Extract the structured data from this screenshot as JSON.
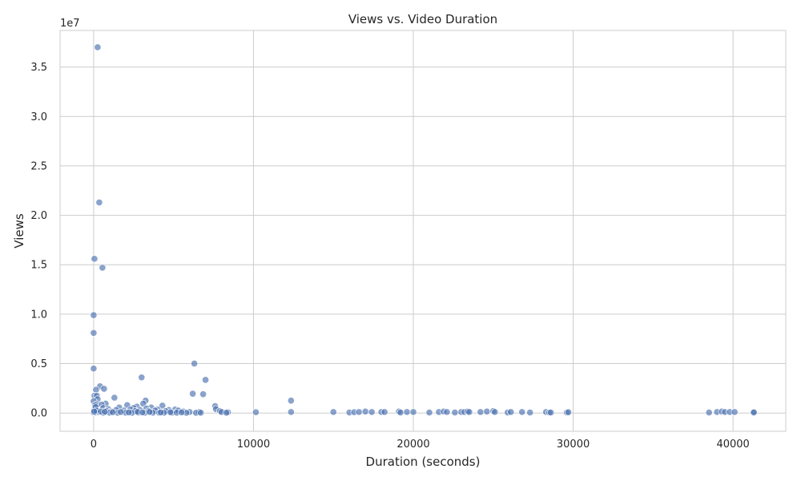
{
  "chart_data": {
    "type": "scatter",
    "title": "Views vs. Video Duration",
    "xlabel": "Duration (seconds)",
    "ylabel": "Views",
    "y_offset_label": "1e7",
    "xlim": [
      -2100,
      43300
    ],
    "ylim": [
      -1850000,
      38700000
    ],
    "x_ticks": [
      0,
      10000,
      20000,
      30000,
      40000
    ],
    "x_tick_labels": [
      "0",
      "10000",
      "20000",
      "30000",
      "40000"
    ],
    "y_ticks": [
      0,
      5000000,
      10000000,
      15000000,
      20000000,
      25000000,
      30000000,
      35000000
    ],
    "y_tick_labels": [
      "0.0",
      "0.5",
      "1.0",
      "1.5",
      "2.0",
      "2.5",
      "3.0",
      "3.5"
    ],
    "grid": true,
    "point_color": "#4c72b0",
    "background": "#ffffff",
    "grid_color": "#cccccc",
    "series": [
      {
        "points": [
          [
            250,
            37000000
          ],
          [
            350,
            21300000
          ],
          [
            50,
            15600000
          ],
          [
            550,
            14700000
          ],
          [
            0,
            9900000
          ],
          [
            0,
            8100000
          ],
          [
            0,
            4500000
          ],
          [
            6300,
            5000000
          ],
          [
            3000,
            3600000
          ],
          [
            7000,
            3350000
          ],
          [
            400,
            2700000
          ],
          [
            650,
            2450000
          ],
          [
            150,
            2350000
          ],
          [
            6200,
            1950000
          ],
          [
            6850,
            1900000
          ],
          [
            50,
            1750000
          ],
          [
            200,
            1750000
          ],
          [
            1300,
            1550000
          ],
          [
            250,
            1400000
          ],
          [
            3250,
            1250000
          ],
          [
            12350,
            1250000
          ],
          [
            0,
            1200000
          ],
          [
            750,
            950000
          ],
          [
            3100,
            950000
          ],
          [
            200,
            900000
          ],
          [
            500,
            850000
          ],
          [
            100,
            800000
          ],
          [
            2100,
            800000
          ],
          [
            4300,
            750000
          ],
          [
            7600,
            700000
          ],
          [
            2700,
            650000
          ],
          [
            1600,
            550000
          ],
          [
            3600,
            550000
          ],
          [
            600,
            500000
          ],
          [
            2500,
            500000
          ],
          [
            3300,
            450000
          ],
          [
            900,
            400000
          ],
          [
            7650,
            400000
          ],
          [
            2300,
            350000
          ],
          [
            4000,
            350000
          ],
          [
            5100,
            350000
          ],
          [
            1400,
            300000
          ],
          [
            2900,
            300000
          ],
          [
            4700,
            300000
          ],
          [
            1900,
            250000
          ],
          [
            3850,
            250000
          ],
          [
            5300,
            250000
          ],
          [
            7900,
            200000
          ],
          [
            800,
            200000
          ],
          [
            1100,
            150000
          ],
          [
            2600,
            200000
          ],
          [
            3450,
            200000
          ],
          [
            4500,
            200000
          ],
          [
            5600,
            150000
          ],
          [
            6000,
            100000
          ],
          [
            6600,
            100000
          ],
          [
            8000,
            100000
          ],
          [
            8400,
            80000
          ],
          [
            10150,
            80000
          ],
          [
            12350,
            100000
          ],
          [
            15000,
            100000
          ],
          [
            16000,
            50000
          ],
          [
            16300,
            80000
          ],
          [
            16600,
            100000
          ],
          [
            17000,
            150000
          ],
          [
            17400,
            100000
          ],
          [
            18000,
            100000
          ],
          [
            18200,
            100000
          ],
          [
            19100,
            150000
          ],
          [
            19200,
            50000
          ],
          [
            19600,
            100000
          ],
          [
            20000,
            100000
          ],
          [
            21000,
            50000
          ],
          [
            21600,
            100000
          ],
          [
            21900,
            150000
          ],
          [
            22100,
            100000
          ],
          [
            22600,
            50000
          ],
          [
            23000,
            100000
          ],
          [
            23200,
            100000
          ],
          [
            23400,
            150000
          ],
          [
            23500,
            100000
          ],
          [
            24200,
            100000
          ],
          [
            24600,
            150000
          ],
          [
            25000,
            200000
          ],
          [
            25100,
            100000
          ],
          [
            25900,
            50000
          ],
          [
            26100,
            100000
          ],
          [
            26800,
            100000
          ],
          [
            27300,
            50000
          ],
          [
            28300,
            100000
          ],
          [
            28500,
            50000
          ],
          [
            28600,
            50000
          ],
          [
            29600,
            50000
          ],
          [
            29700,
            80000
          ],
          [
            38500,
            50000
          ],
          [
            39000,
            100000
          ],
          [
            39300,
            150000
          ],
          [
            39500,
            100000
          ],
          [
            39800,
            100000
          ],
          [
            40100,
            100000
          ],
          [
            41300,
            120000
          ],
          [
            41300,
            50000
          ],
          [
            0,
            50000
          ],
          [
            100,
            50000
          ],
          [
            300,
            100000
          ],
          [
            600,
            20000
          ],
          [
            1000,
            30000
          ],
          [
            1500,
            20000
          ],
          [
            2000,
            30000
          ],
          [
            2400,
            20000
          ],
          [
            2800,
            30000
          ],
          [
            3200,
            20000
          ],
          [
            3700,
            30000
          ],
          [
            4100,
            20000
          ],
          [
            4400,
            30000
          ],
          [
            4900,
            20000
          ],
          [
            5200,
            30000
          ],
          [
            5800,
            20000
          ],
          [
            6400,
            20000
          ],
          [
            6700,
            30000
          ],
          [
            8300,
            30000
          ],
          [
            50,
            300000
          ],
          [
            120,
            600000
          ],
          [
            180,
            250000
          ],
          [
            30,
            150000
          ],
          [
            450,
            150000
          ],
          [
            700,
            120000
          ],
          [
            1200,
            80000
          ],
          [
            1700,
            100000
          ],
          [
            2200,
            60000
          ],
          [
            2750,
            120000
          ],
          [
            3050,
            60000
          ],
          [
            3500,
            100000
          ],
          [
            4200,
            60000
          ],
          [
            4800,
            80000
          ],
          [
            5500,
            60000
          ]
        ]
      }
    ]
  }
}
